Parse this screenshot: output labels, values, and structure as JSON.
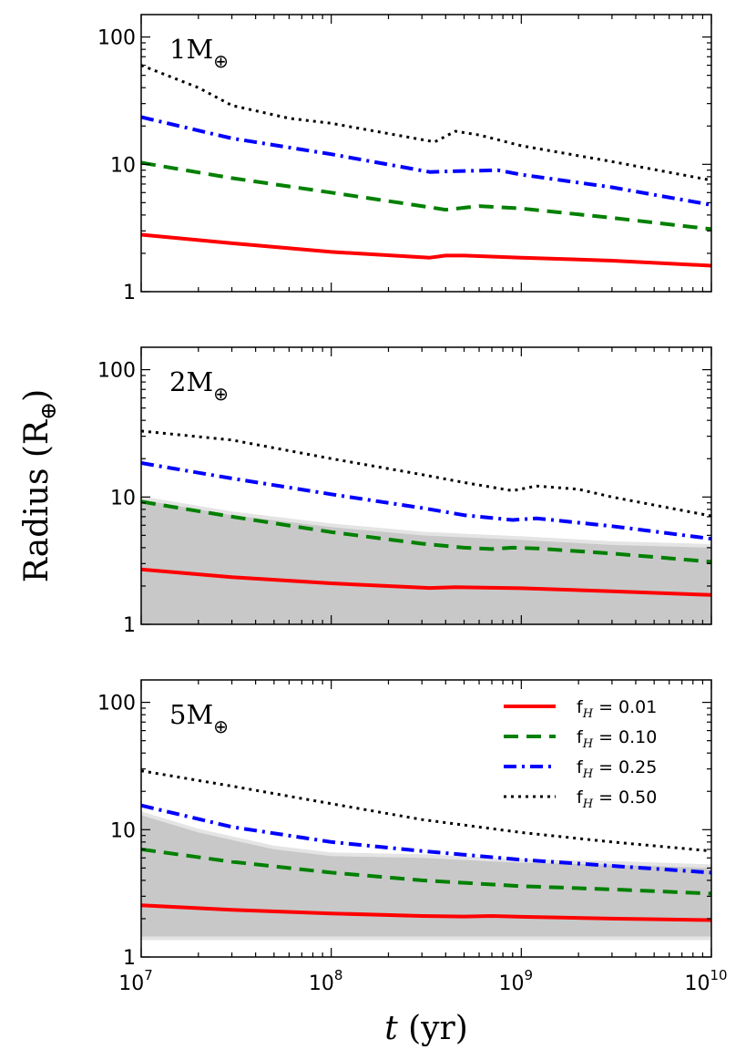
{
  "chart_data": [
    {
      "type": "line",
      "panel_label": "1M",
      "panel_label_symbol": "⊕",
      "x_scale": "log",
      "y_scale": "log",
      "xlim": [
        10000000,
        10000000000
      ],
      "ylim": [
        1,
        150
      ],
      "shaded_band": null,
      "series": [
        {
          "name": "f_H = 0.01",
          "x": [
            10000000.0,
            30000000.0,
            100000000.0,
            330000000.0,
            400000000.0,
            500000000.0,
            1000000000.0,
            3000000000.0,
            10000000000.0
          ],
          "y": [
            2.8,
            2.4,
            2.05,
            1.85,
            1.92,
            1.92,
            1.85,
            1.75,
            1.6
          ]
        },
        {
          "name": "f_H = 0.10",
          "x": [
            10000000.0,
            30000000.0,
            100000000.0,
            330000000.0,
            400000000.0,
            600000000.0,
            1000000000.0,
            3000000000.0,
            10000000000.0
          ],
          "y": [
            10.3,
            7.8,
            6.0,
            4.6,
            4.4,
            4.7,
            4.5,
            3.8,
            3.1
          ]
        },
        {
          "name": "f_H = 0.25",
          "x": [
            10000000.0,
            30000000.0,
            100000000.0,
            330000000.0,
            400000000.0,
            750000000.0,
            1000000000.0,
            3000000000.0,
            10000000000.0
          ],
          "y": [
            23.5,
            16,
            12,
            8.7,
            8.8,
            9.0,
            8.3,
            6.6,
            4.8
          ]
        },
        {
          "name": "f_H = 0.50",
          "x": [
            10000000.0,
            20000000.0,
            30000000.0,
            60000000.0,
            100000000.0,
            350000000.0,
            450000000.0,
            600000000.0,
            1000000000.0,
            3000000000.0,
            10000000000.0
          ],
          "y": [
            60,
            40,
            29,
            23,
            21,
            15,
            18.2,
            17,
            14,
            10.5,
            7.5
          ]
        }
      ]
    },
    {
      "type": "line",
      "panel_label": "2M",
      "panel_label_symbol": "⊕",
      "x_scale": "log",
      "y_scale": "log",
      "xlim": [
        10000000,
        10000000000
      ],
      "ylim": [
        1,
        150
      ],
      "shaded_band": {
        "x": [
          10000000.0,
          30000000.0,
          100000000.0,
          300000000.0,
          1000000000.0,
          3000000000.0,
          10000000000.0
        ],
        "upper": [
          9.5,
          7.2,
          5.8,
          5.0,
          4.6,
          4.2,
          4.0
        ],
        "lower": [
          1,
          1,
          1,
          1,
          1,
          1,
          1
        ]
      },
      "series": [
        {
          "name": "f_H = 0.01",
          "x": [
            10000000.0,
            30000000.0,
            100000000.0,
            330000000.0,
            450000000.0,
            1000000000.0,
            3000000000.0,
            10000000000.0
          ],
          "y": [
            2.7,
            2.35,
            2.1,
            1.93,
            1.96,
            1.92,
            1.82,
            1.7
          ]
        },
        {
          "name": "f_H = 0.10",
          "x": [
            10000000.0,
            30000000.0,
            100000000.0,
            300000000.0,
            500000000.0,
            700000000.0,
            900000000.0,
            1200000000.0,
            3000000000.0,
            10000000000.0
          ],
          "y": [
            9.2,
            7.0,
            5.3,
            4.3,
            4.0,
            3.9,
            4.0,
            3.95,
            3.6,
            3.1
          ]
        },
        {
          "name": "f_H = 0.25",
          "x": [
            10000000.0,
            30000000.0,
            100000000.0,
            300000000.0,
            500000000.0,
            900000000.0,
            1200000000.0,
            3000000000.0,
            10000000000.0
          ],
          "y": [
            18.5,
            14,
            10.5,
            8.2,
            7.2,
            6.6,
            6.8,
            5.9,
            4.7
          ]
        },
        {
          "name": "f_H = 0.50",
          "x": [
            10000000.0,
            30000000.0,
            100000000.0,
            300000000.0,
            500000000.0,
            900000000.0,
            1200000000.0,
            2000000000.0,
            3000000000.0,
            10000000000.0
          ],
          "y": [
            33,
            28,
            20,
            15,
            13,
            11.2,
            12.2,
            11.5,
            10,
            7.1
          ]
        }
      ]
    },
    {
      "type": "line",
      "panel_label": "5M",
      "panel_label_symbol": "⊕",
      "x_scale": "log",
      "y_scale": "log",
      "xlim": [
        10000000,
        10000000000
      ],
      "ylim": [
        1,
        150
      ],
      "shaded_band": {
        "x": [
          10000000.0,
          20000000.0,
          50000000.0,
          100000000.0,
          300000000.0,
          1000000000.0,
          3000000000.0,
          10000000000.0
        ],
        "upper": [
          13,
          9.5,
          7.0,
          6.2,
          6.0,
          5.5,
          5.3,
          5.0
        ],
        "lower": [
          1.45,
          1.45,
          1.45,
          1.45,
          1.45,
          1.45,
          1.45,
          1.45
        ]
      },
      "series": [
        {
          "name": "f_H = 0.01",
          "x": [
            10000000.0,
            30000000.0,
            100000000.0,
            300000000.0,
            500000000.0,
            700000000.0,
            1000000000.0,
            3000000000.0,
            10000000000.0
          ],
          "y": [
            2.55,
            2.35,
            2.2,
            2.1,
            2.08,
            2.1,
            2.07,
            2.0,
            1.95
          ]
        },
        {
          "name": "f_H = 0.10",
          "x": [
            10000000.0,
            30000000.0,
            100000000.0,
            300000000.0,
            1000000000.0,
            3000000000.0,
            10000000000.0
          ],
          "y": [
            7.0,
            5.6,
            4.6,
            4.0,
            3.6,
            3.4,
            3.15
          ]
        },
        {
          "name": "f_H = 0.25",
          "x": [
            10000000.0,
            30000000.0,
            100000000.0,
            300000000.0,
            1000000000.0,
            3000000000.0,
            10000000000.0
          ],
          "y": [
            15.5,
            10.5,
            8.0,
            6.8,
            5.8,
            5.2,
            4.6
          ]
        },
        {
          "name": "f_H = 0.50",
          "x": [
            10000000.0,
            30000000.0,
            100000000.0,
            300000000.0,
            1000000000.0,
            3000000000.0,
            10000000000.0
          ],
          "y": [
            29,
            22,
            16,
            12,
            9.5,
            8.0,
            6.8
          ]
        }
      ]
    }
  ],
  "series_styles": [
    {
      "name": "f_H = 0.01",
      "color": "#ff0000",
      "dash": "solid"
    },
    {
      "name": "f_H = 0.10",
      "color": "#008000",
      "dash": "dashed"
    },
    {
      "name": "f_H = 0.25",
      "color": "#0000ff",
      "dash": "dashdot"
    },
    {
      "name": "f_H = 0.50",
      "color": "#000000",
      "dash": "dotted"
    }
  ],
  "axes": {
    "ylabel": "Radius (R",
    "ylabel_symbol": "⊕",
    "ylabel_close": ")",
    "xlabel_var": "t",
    "xlabel_unit": "(yr)",
    "y_ticks": [
      {
        "value": 1,
        "label": "1"
      },
      {
        "value": 10,
        "label": "10"
      },
      {
        "value": 100,
        "label": "100"
      }
    ],
    "x_ticks": [
      {
        "value": 10000000,
        "base": "10",
        "exp": "7"
      },
      {
        "value": 100000000,
        "base": "10",
        "exp": "8"
      },
      {
        "value": 1000000000,
        "base": "10",
        "exp": "9"
      },
      {
        "value": 10000000000,
        "base": "10",
        "exp": "10"
      }
    ]
  },
  "legend": {
    "placement": "top-right of bottom panel",
    "entries": [
      {
        "prefix": "f",
        "sub": "H",
        "value": " = 0.01"
      },
      {
        "prefix": "f",
        "sub": "H",
        "value": " = 0.10"
      },
      {
        "prefix": "f",
        "sub": "H",
        "value": " = 0.25"
      },
      {
        "prefix": "f",
        "sub": "H",
        "value": " = 0.50"
      }
    ]
  },
  "colors": {
    "band_fill": "#c8c8c8",
    "band_edge": "#e4e4e4",
    "axis": "#000000"
  }
}
